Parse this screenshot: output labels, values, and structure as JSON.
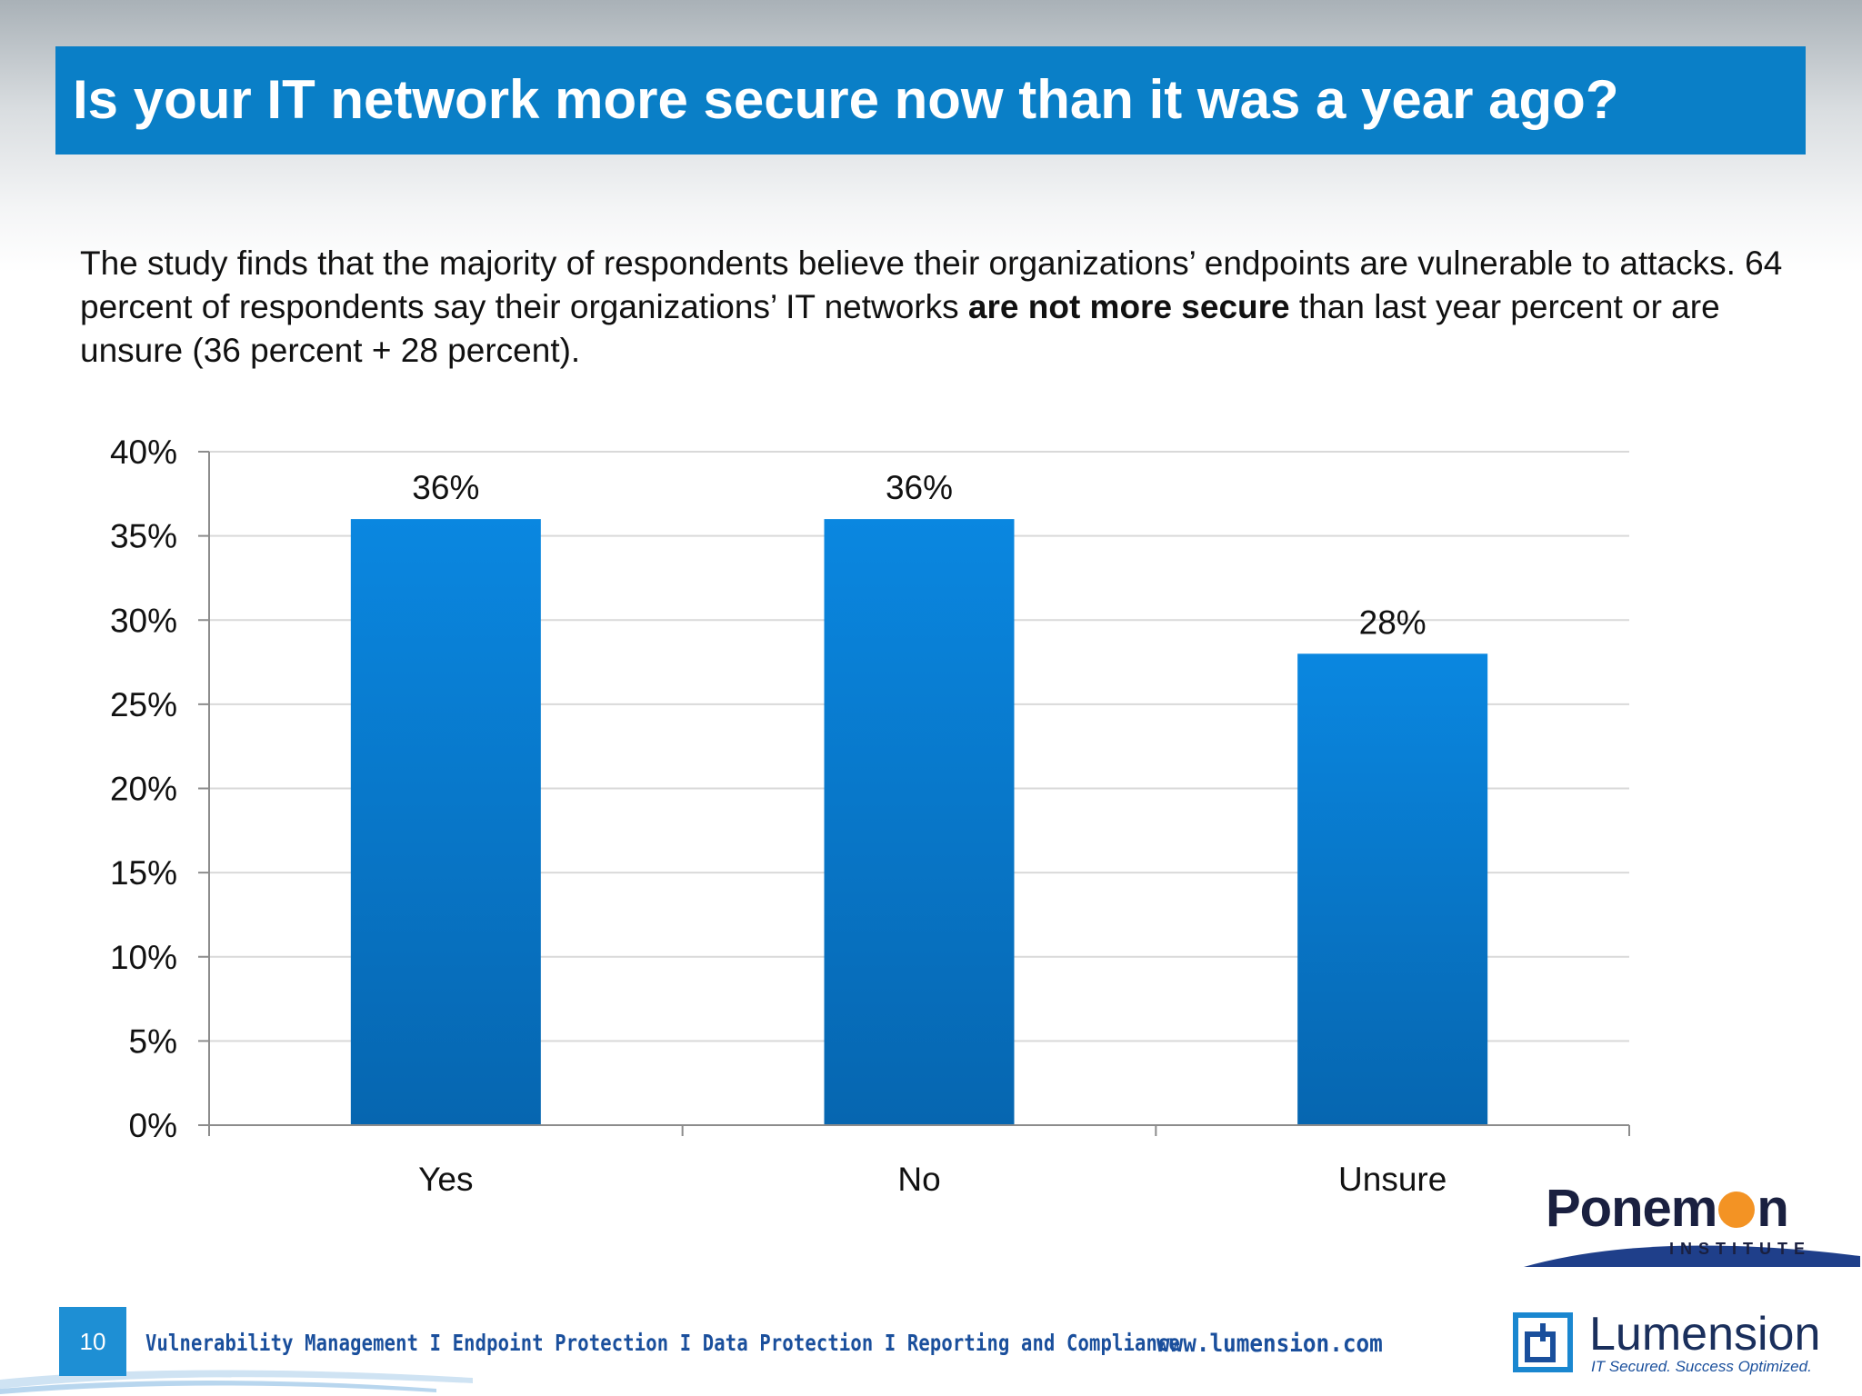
{
  "slide": {
    "title": "Is your IT network more secure now than it was a year ago?",
    "body_part1": "The study finds that the majority of respondents believe their organizations’ endpoints are vulnerable to attacks. 64 percent of respondents say their organizations’ IT networks ",
    "body_bold": "are not more secure",
    "body_part2": " than last year percent or are unsure (36 percent + 28 percent)."
  },
  "chart_data": {
    "type": "bar",
    "categories": [
      "Yes",
      "No",
      "Unsure"
    ],
    "values": [
      36,
      36,
      28
    ],
    "data_labels": [
      "36%",
      "36%",
      "28%"
    ],
    "ylim": [
      0,
      40
    ],
    "yticks": [
      0,
      5,
      10,
      15,
      20,
      25,
      30,
      35,
      40
    ],
    "ytick_labels": [
      "0%",
      "5%",
      "10%",
      "15%",
      "20%",
      "25%",
      "30%",
      "35%",
      "40%"
    ],
    "grid": true,
    "bar_color": "#0a7fc7",
    "bar_color_top": "#0a87e0",
    "bar_color_bottom": "#0666b0"
  },
  "footer": {
    "page_number": "10",
    "tagline": "Vulnerability Management I Endpoint Protection I Data Protection I Reporting and Compliance",
    "url": "www.lumension.com"
  },
  "logos": {
    "ponemon_left": "Ponem",
    "ponemon_right": "n",
    "ponemon_sub": "INSTITUTE",
    "ponemon_accent": "#f39324",
    "lumension_name": "Lumension",
    "lumension_tagline": "IT Secured. Success Optimized."
  }
}
